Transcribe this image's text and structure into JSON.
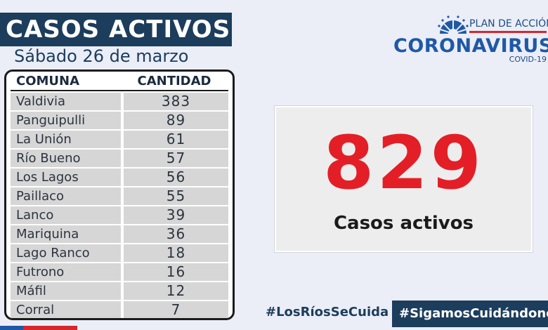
{
  "header": {
    "title": "CASOS ACTIVOS",
    "date": "Sábado 26 de marzo"
  },
  "table": {
    "columns": [
      "COMUNA",
      "CANTIDAD"
    ],
    "rows": [
      {
        "comuna": "Valdivia",
        "cantidad": "383"
      },
      {
        "comuna": "Panguipulli",
        "cantidad": "89"
      },
      {
        "comuna": "La Unión",
        "cantidad": "61"
      },
      {
        "comuna": "Río Bueno",
        "cantidad": "57"
      },
      {
        "comuna": "Los Lagos",
        "cantidad": "56"
      },
      {
        "comuna": "Paillaco",
        "cantidad": "55"
      },
      {
        "comuna": "Lanco",
        "cantidad": "39"
      },
      {
        "comuna": "Mariquina",
        "cantidad": "36"
      },
      {
        "comuna": "Lago Ranco",
        "cantidad": "18"
      },
      {
        "comuna": "Futrono",
        "cantidad": "16"
      },
      {
        "comuna": "Máfil",
        "cantidad": "12"
      },
      {
        "comuna": "Corral",
        "cantidad": "7"
      }
    ]
  },
  "logo": {
    "plan": "PLAN DE ACCIÓN",
    "name": "CORONAVIRUS",
    "sub": "COVID-19",
    "icon": "sun-rays-icon"
  },
  "summary": {
    "total": "829",
    "label": "Casos activos"
  },
  "hashtags": [
    "#LosRíosSeCuida",
    "#SigamosCuidándonos"
  ],
  "colors": {
    "navy": "#1c3d5c",
    "red": "#e41e26",
    "brand_blue": "#1f58a6",
    "background": "#ebeef7"
  }
}
